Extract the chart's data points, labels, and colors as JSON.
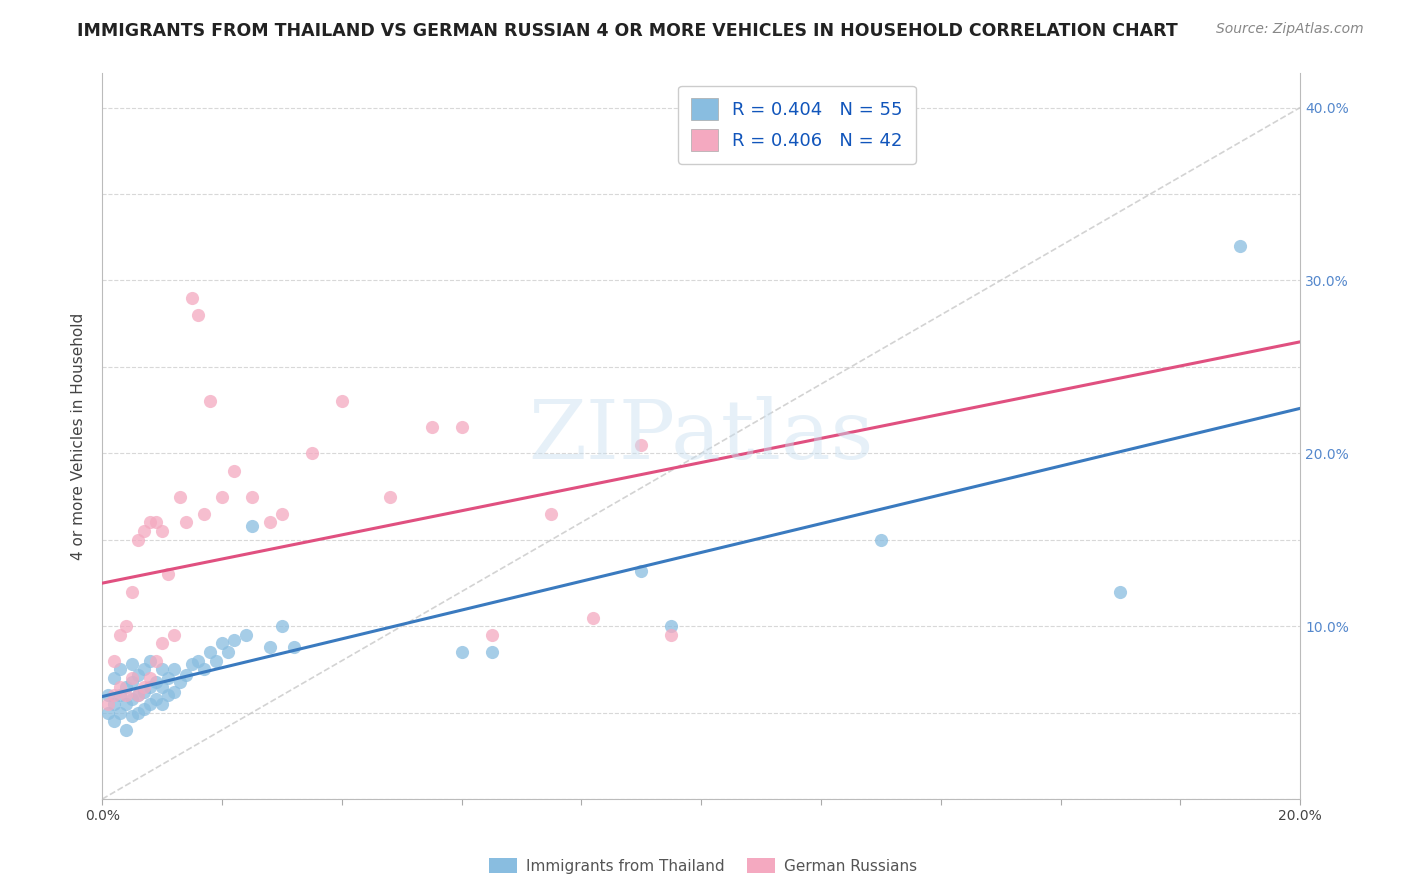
{
  "title": "IMMIGRANTS FROM THAILAND VS GERMAN RUSSIAN 4 OR MORE VEHICLES IN HOUSEHOLD CORRELATION CHART",
  "source": "Source: ZipAtlas.com",
  "ylabel": "4 or more Vehicles in Household",
  "xlim": [
    0.0,
    0.2
  ],
  "ylim": [
    0.0,
    0.42
  ],
  "x_ticks": [
    0.0,
    0.02,
    0.04,
    0.06,
    0.08,
    0.1,
    0.12,
    0.14,
    0.16,
    0.18,
    0.2
  ],
  "y_ticks": [
    0.0,
    0.05,
    0.1,
    0.15,
    0.2,
    0.25,
    0.3,
    0.35,
    0.4
  ],
  "legend_R1": "0.404",
  "legend_N1": "55",
  "legend_R2": "0.406",
  "legend_N2": "42",
  "color_blue": "#89bde0",
  "color_pink": "#f4a9c0",
  "color_line_blue": "#3a7abf",
  "color_line_pink": "#e05080",
  "color_diag": "#c8c8c8",
  "background_color": "#ffffff",
  "grid_color": "#d8d8d8",
  "title_fontsize": 12.5,
  "source_fontsize": 10,
  "axis_label_fontsize": 11,
  "tick_fontsize": 10,
  "legend_fontsize": 13,
  "watermark": "ZIPatlas",
  "thailand_x": [
    0.001,
    0.001,
    0.002,
    0.002,
    0.002,
    0.003,
    0.003,
    0.003,
    0.004,
    0.004,
    0.004,
    0.005,
    0.005,
    0.005,
    0.005,
    0.006,
    0.006,
    0.006,
    0.007,
    0.007,
    0.007,
    0.008,
    0.008,
    0.008,
    0.009,
    0.009,
    0.01,
    0.01,
    0.01,
    0.011,
    0.011,
    0.012,
    0.012,
    0.013,
    0.014,
    0.015,
    0.016,
    0.017,
    0.018,
    0.019,
    0.02,
    0.021,
    0.022,
    0.024,
    0.025,
    0.028,
    0.03,
    0.032,
    0.06,
    0.065,
    0.09,
    0.095,
    0.13,
    0.17,
    0.19
  ],
  "thailand_y": [
    0.05,
    0.06,
    0.045,
    0.055,
    0.07,
    0.05,
    0.06,
    0.075,
    0.04,
    0.055,
    0.065,
    0.048,
    0.058,
    0.068,
    0.078,
    0.05,
    0.06,
    0.072,
    0.052,
    0.062,
    0.075,
    0.055,
    0.065,
    0.08,
    0.058,
    0.068,
    0.055,
    0.065,
    0.075,
    0.06,
    0.07,
    0.062,
    0.075,
    0.068,
    0.072,
    0.078,
    0.08,
    0.075,
    0.085,
    0.08,
    0.09,
    0.085,
    0.092,
    0.095,
    0.158,
    0.088,
    0.1,
    0.088,
    0.085,
    0.085,
    0.132,
    0.1,
    0.15,
    0.12,
    0.32
  ],
  "german_x": [
    0.001,
    0.002,
    0.002,
    0.003,
    0.003,
    0.004,
    0.004,
    0.005,
    0.005,
    0.006,
    0.006,
    0.007,
    0.007,
    0.008,
    0.008,
    0.009,
    0.009,
    0.01,
    0.01,
    0.011,
    0.012,
    0.013,
    0.014,
    0.015,
    0.016,
    0.017,
    0.018,
    0.02,
    0.022,
    0.025,
    0.028,
    0.03,
    0.035,
    0.04,
    0.048,
    0.055,
    0.06,
    0.065,
    0.075,
    0.082,
    0.09,
    0.095
  ],
  "german_y": [
    0.055,
    0.06,
    0.08,
    0.065,
    0.095,
    0.06,
    0.1,
    0.07,
    0.12,
    0.06,
    0.15,
    0.065,
    0.155,
    0.07,
    0.16,
    0.08,
    0.16,
    0.09,
    0.155,
    0.13,
    0.095,
    0.175,
    0.16,
    0.29,
    0.28,
    0.165,
    0.23,
    0.175,
    0.19,
    0.175,
    0.16,
    0.165,
    0.2,
    0.23,
    0.175,
    0.215,
    0.215,
    0.095,
    0.165,
    0.105,
    0.205,
    0.095
  ]
}
